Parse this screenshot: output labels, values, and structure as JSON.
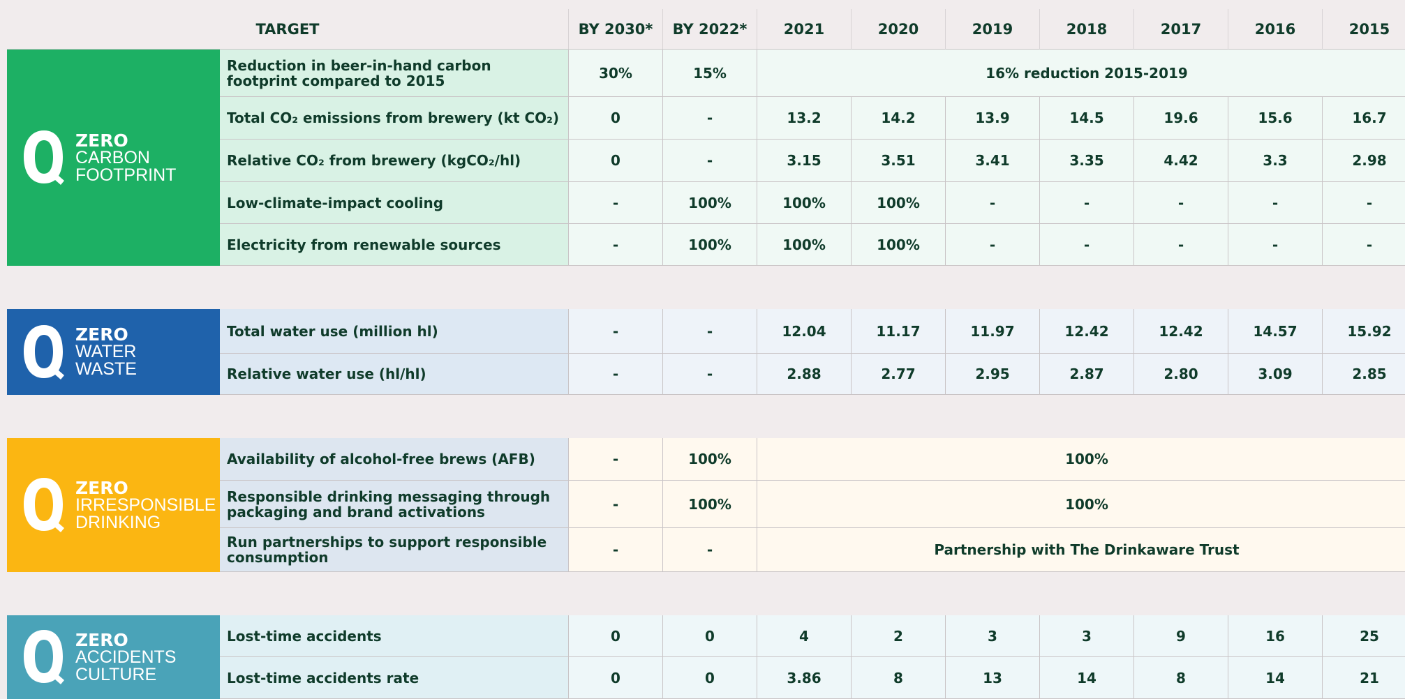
{
  "header": {
    "target": "TARGET",
    "columns": [
      "BY 2030*",
      "BY 2022*",
      "2021",
      "2020",
      "2019",
      "2018",
      "2017",
      "2016",
      "2015"
    ]
  },
  "sections": [
    {
      "lines": [
        "ZERO",
        "CARBON",
        "FOOTPRINT"
      ],
      "rows": [
        {
          "label": "Reduction in beer-in-hand carbon footprint compared to 2015",
          "targets": [
            "30%",
            "15%"
          ],
          "history": "16% reduction 2015-2019"
        },
        {
          "label": "Total CO₂ emissions from brewery (kt CO₂)",
          "targets": [
            "0",
            "-"
          ],
          "history": [
            "13.2",
            "14.2",
            "13.9",
            "14.5",
            "19.6",
            "15.6",
            "16.7"
          ]
        },
        {
          "label": "Relative CO₂ from brewery (kgCO₂/hl)",
          "targets": [
            "0",
            "-"
          ],
          "history": [
            "3.15",
            "3.51",
            "3.41",
            "3.35",
            "4.42",
            "3.3",
            "2.98"
          ]
        },
        {
          "label": "Low-climate-impact cooling",
          "targets": [
            "-",
            "100%"
          ],
          "history": [
            "100%",
            "100%",
            "-",
            "-",
            "-",
            "-",
            "-"
          ]
        },
        {
          "label": "Electricity from renewable sources",
          "targets": [
            "-",
            "100%"
          ],
          "history": [
            "100%",
            "100%",
            "-",
            "-",
            "-",
            "-",
            "-"
          ]
        }
      ]
    },
    {
      "lines": [
        "ZERO",
        "WATER",
        "WASTE"
      ],
      "rows": [
        {
          "label": "Total water use (million hl)",
          "targets": [
            "-",
            "-"
          ],
          "history": [
            "12.04",
            "11.17",
            "11.97",
            "12.42",
            "12.42",
            "14.57",
            "15.92"
          ]
        },
        {
          "label": "Relative water use (hl/hl)",
          "targets": [
            "-",
            "-"
          ],
          "history": [
            "2.88",
            "2.77",
            "2.95",
            "2.87",
            "2.80",
            "3.09",
            "2.85"
          ]
        }
      ]
    },
    {
      "lines": [
        "ZERO",
        "IRRESPONSIBLE",
        "DRINKING"
      ],
      "rows": [
        {
          "label": "Availability of alcohol-free brews (AFB)",
          "targets": [
            "-",
            "100%"
          ],
          "history": "100%"
        },
        {
          "label": "Responsible drinking messaging through packaging and brand activations",
          "targets": [
            "-",
            "100%"
          ],
          "history": "100%"
        },
        {
          "label": "Run partnerships to support responsible consumption",
          "targets": [
            "-",
            "-"
          ],
          "history": "Partnership with The Drinkaware Trust"
        }
      ]
    },
    {
      "lines": [
        "ZERO",
        "ACCIDENTS",
        "CULTURE"
      ],
      "rows": [
        {
          "label": "Lost-time accidents",
          "targets": [
            "0",
            "0"
          ],
          "history": [
            "4",
            "2",
            "3",
            "3",
            "9",
            "16",
            "25"
          ]
        },
        {
          "label": "Lost-time accidents rate",
          "targets": [
            "0",
            "0"
          ],
          "history": [
            "3.86",
            "8",
            "13",
            "14",
            "8",
            "14",
            "21"
          ]
        }
      ]
    }
  ]
}
